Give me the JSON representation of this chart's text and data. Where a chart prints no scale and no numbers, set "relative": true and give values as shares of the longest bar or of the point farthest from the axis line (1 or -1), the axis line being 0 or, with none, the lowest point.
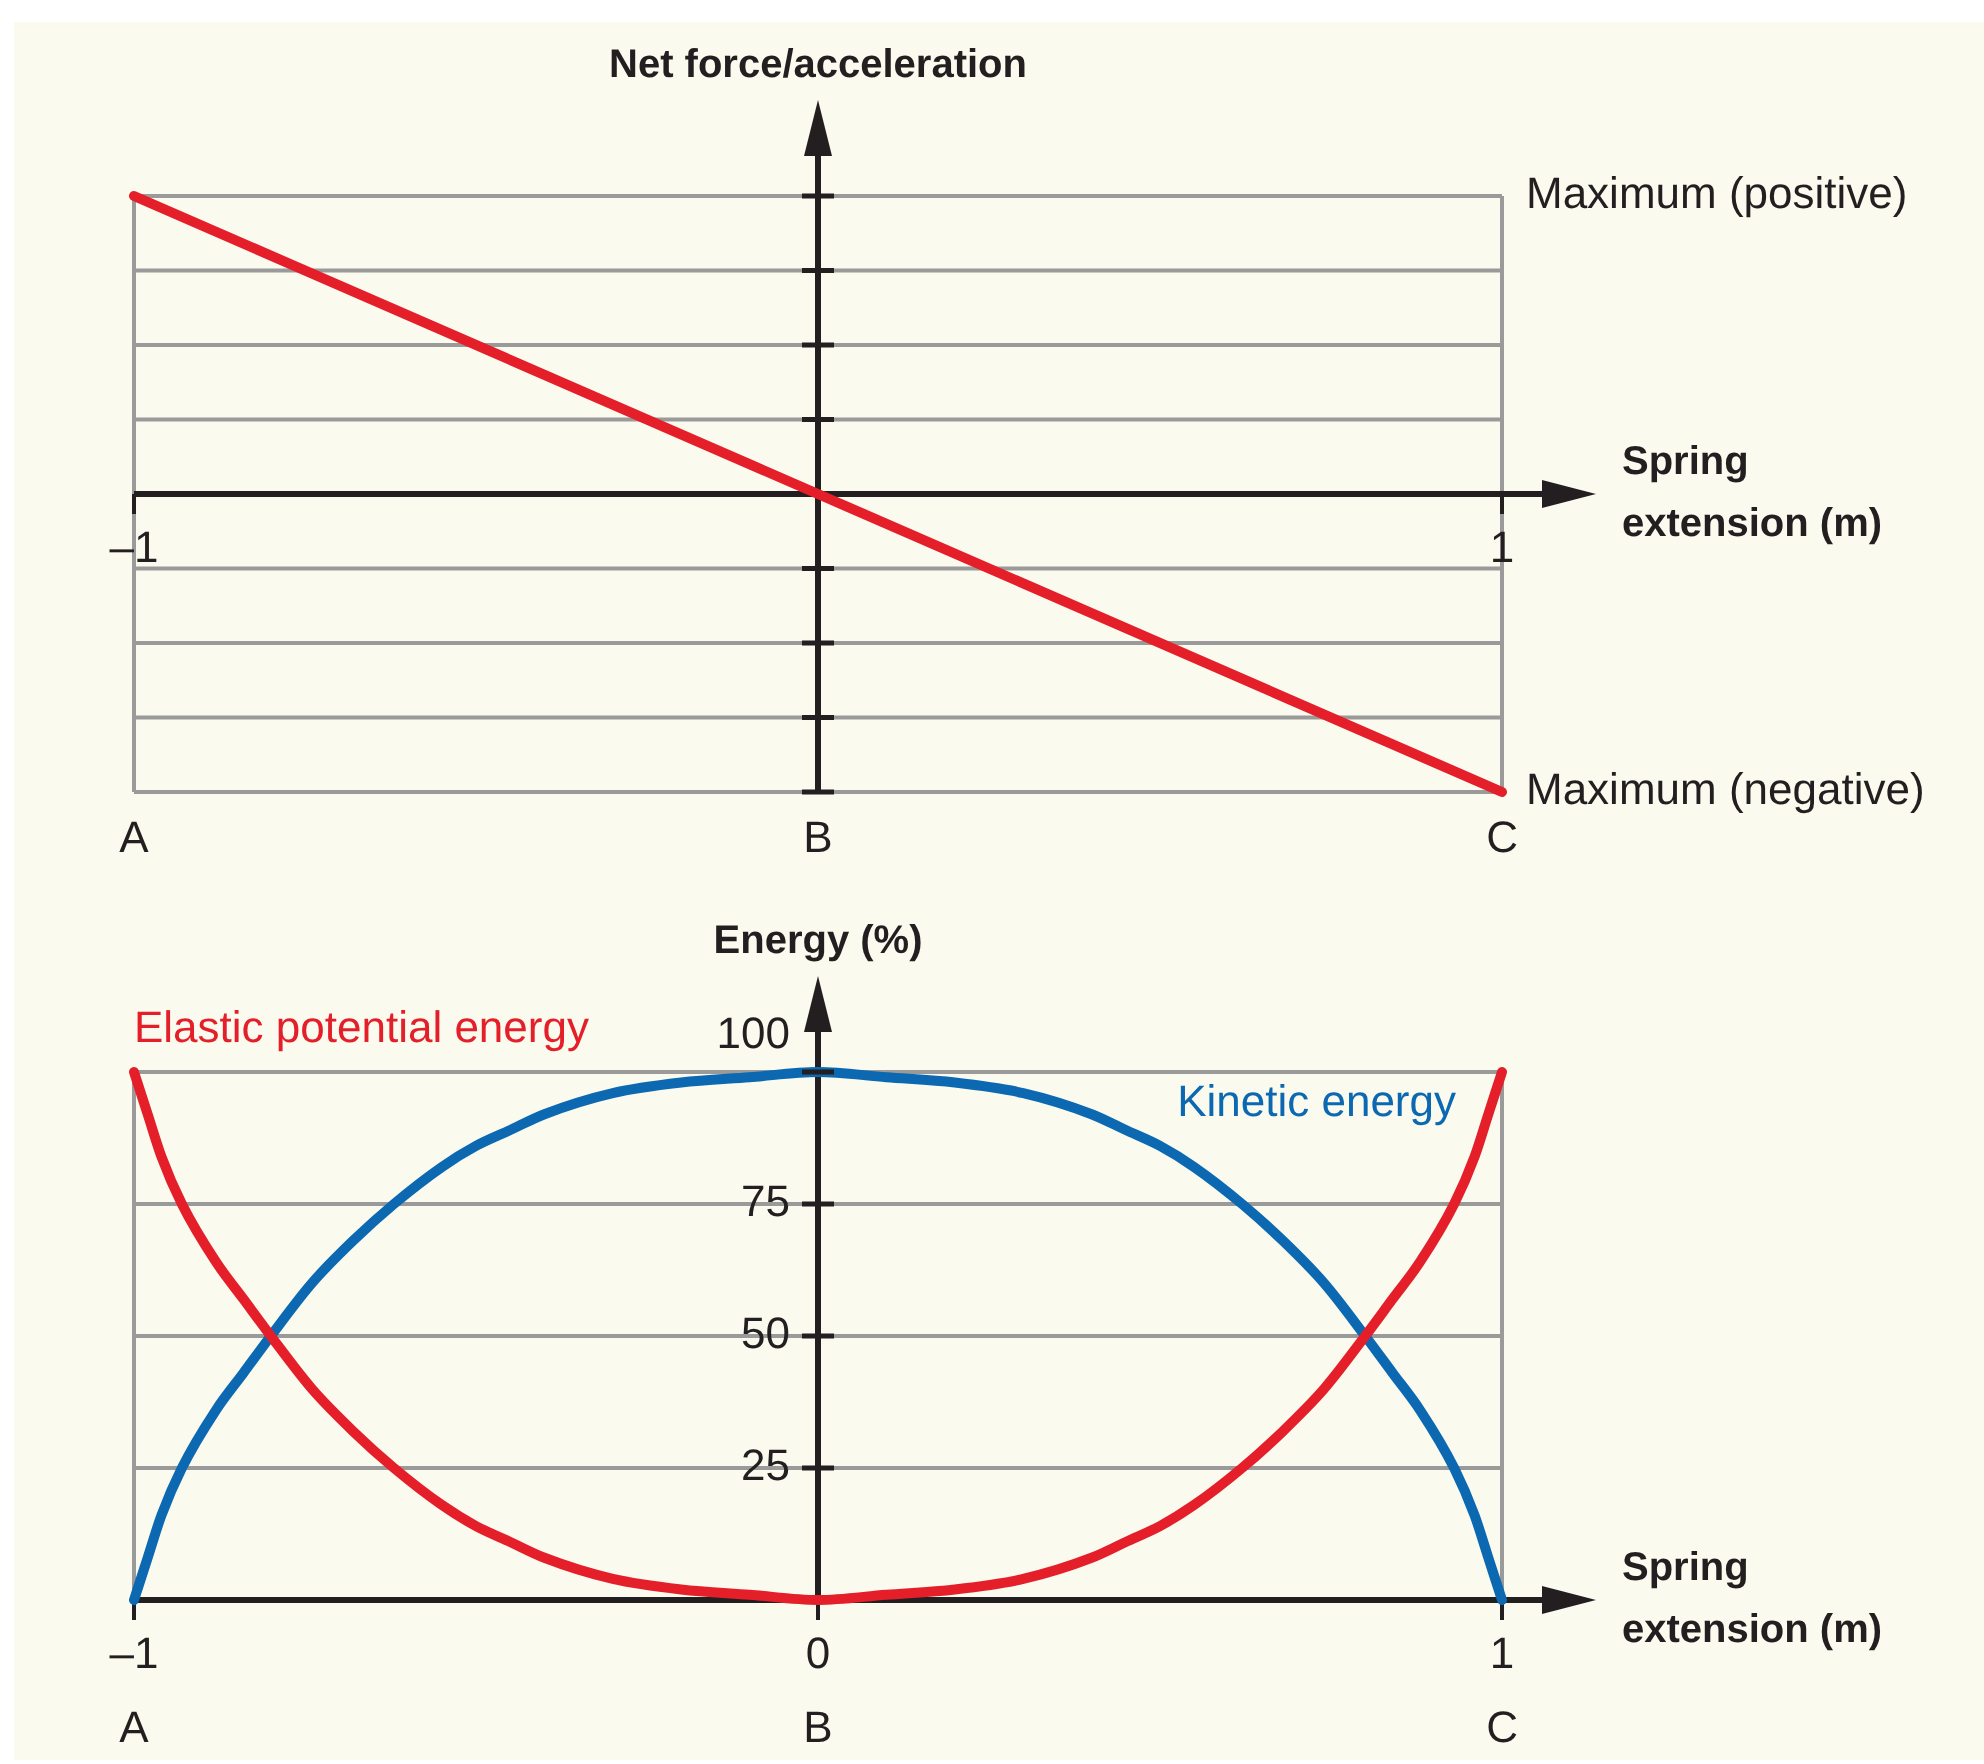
{
  "chart_data": [
    {
      "type": "line",
      "ylabel": "Net force/acceleration",
      "xlabel": "Spring extension (m)",
      "relative": true,
      "x": [
        -1,
        1
      ],
      "series": [
        {
          "color": "#e41f2a",
          "values": [
            1,
            -1
          ]
        }
      ],
      "xlim": [
        -1,
        1
      ],
      "xticks": [
        {
          "value": -1,
          "label": "–1"
        },
        {
          "value": 1,
          "label": "1"
        }
      ],
      "grid": true,
      "ref_lines": [
        {
          "axis": "y",
          "value": 1,
          "label": "Maximum (positive)",
          "color": "#9a9a9a"
        },
        {
          "axis": "y",
          "value": -1,
          "label": "Maximum (negative)",
          "color": "#9a9a9a"
        }
      ],
      "annotations": [
        "A",
        "B",
        "C"
      ]
    },
    {
      "type": "line",
      "ylabel": "Energy (%)",
      "xlabel": "Spring extension (m)",
      "x": [
        -1,
        -0.98,
        -0.96,
        -0.93,
        -0.88,
        -0.84,
        -0.8,
        -0.74,
        -0.68,
        -0.62,
        -0.55,
        -0.5,
        -0.45,
        -0.4,
        -0.3,
        -0.2,
        -0.1,
        0,
        0.1,
        0.2,
        0.3,
        0.4,
        0.45,
        0.5,
        0.55,
        0.62,
        0.68,
        0.74,
        0.8,
        0.84,
        0.88,
        0.93,
        0.96,
        0.98,
        1
      ],
      "series": [
        {
          "name": "Elastic potential energy",
          "color": "#e41f2a",
          "values": [
            100,
            92,
            84,
            75,
            64,
            57,
            50,
            40,
            32,
            25,
            18,
            14,
            11,
            8,
            4,
            2,
            1,
            0,
            1,
            2,
            4,
            8,
            11,
            14,
            18,
            25,
            32,
            40,
            50,
            57,
            64,
            75,
            84,
            92,
            100
          ]
        },
        {
          "name": "Kinetic energy",
          "color": "#0b68b1",
          "values": [
            0,
            8,
            16,
            25,
            36,
            43,
            50,
            60,
            68,
            75,
            82,
            86,
            89,
            92,
            96,
            98,
            99,
            100,
            99,
            98,
            96,
            92,
            89,
            86,
            82,
            75,
            68,
            60,
            50,
            43,
            36,
            25,
            16,
            8,
            0
          ]
        }
      ],
      "xlim": [
        -1,
        1
      ],
      "xticks": [
        {
          "value": -1,
          "label": "–1"
        },
        {
          "value": 0,
          "label": "0"
        },
        {
          "value": 1,
          "label": "1"
        }
      ],
      "ylim": [
        0,
        100
      ],
      "yticks": [
        {
          "value": 0,
          "label": null
        },
        25,
        50,
        75,
        100
      ],
      "grid": true,
      "annotations": [
        "A",
        "B",
        "C"
      ]
    }
  ]
}
